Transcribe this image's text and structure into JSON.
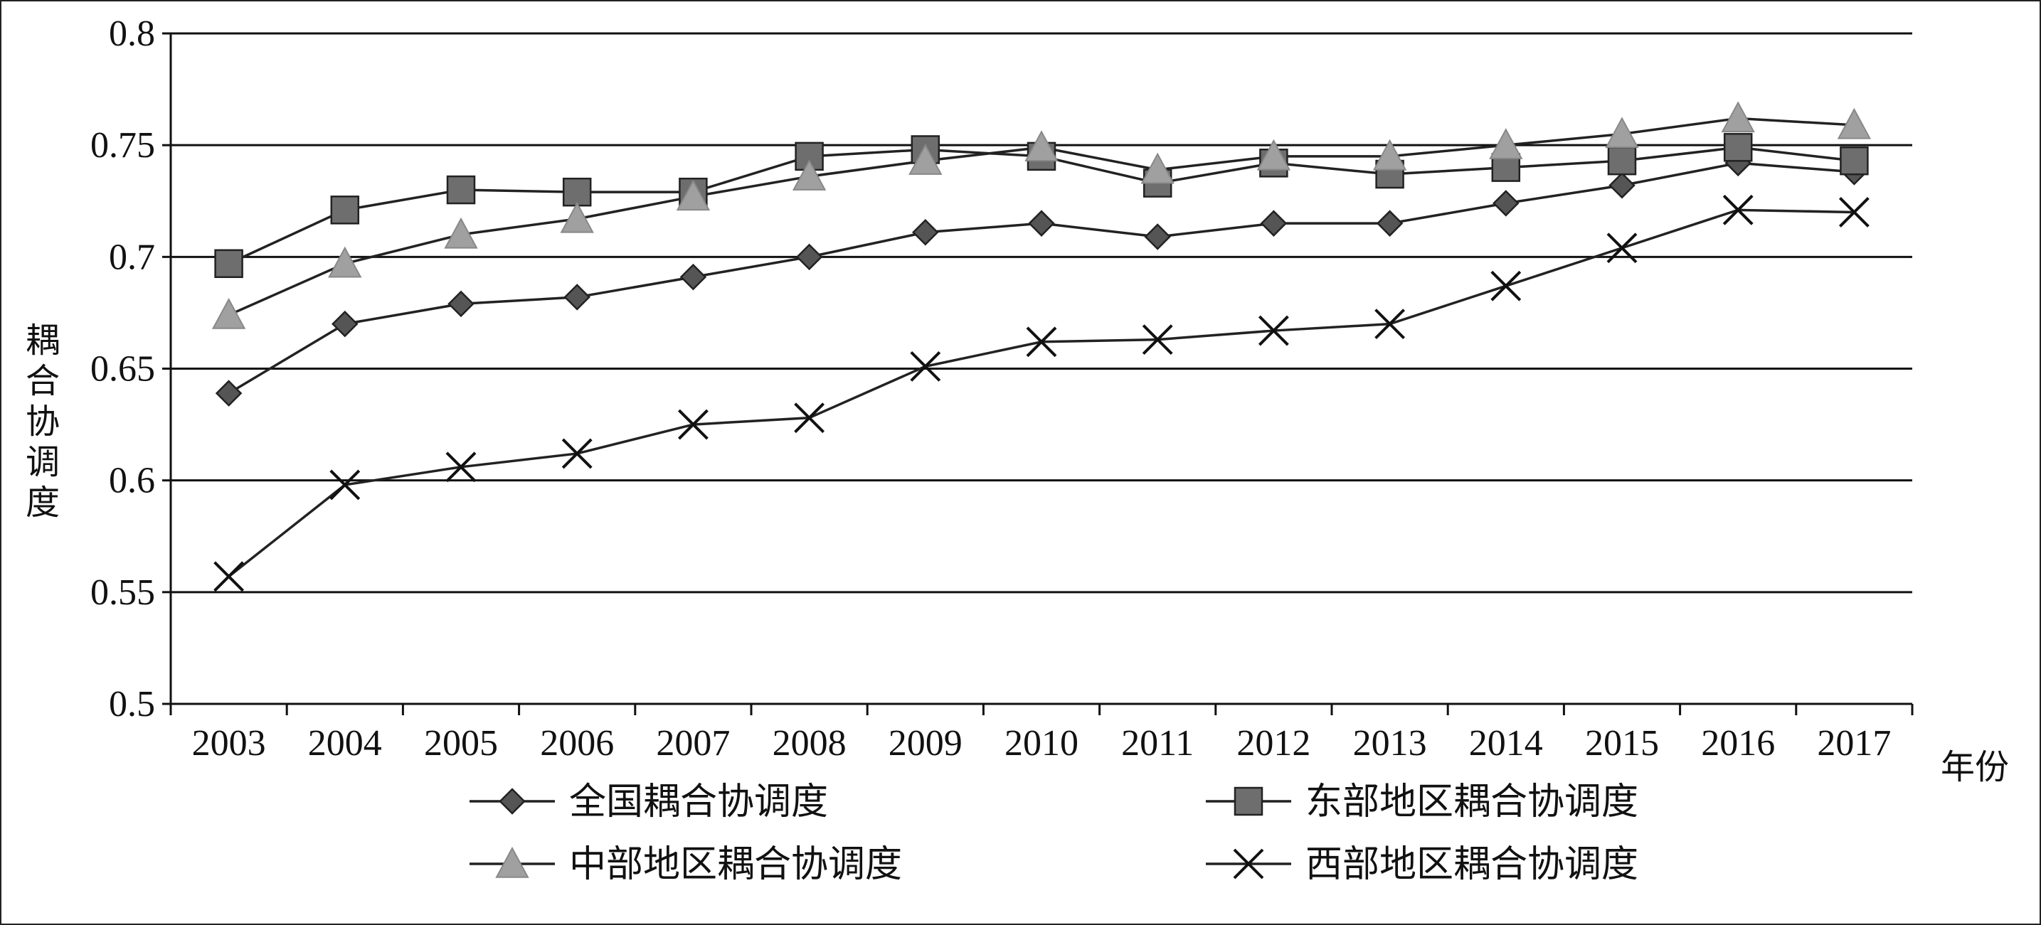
{
  "chart_data": {
    "type": "line",
    "title": "",
    "xlabel": "年份",
    "ylabel": "耦合协调度",
    "ylim": [
      0.5,
      0.8
    ],
    "yticks": [
      "0.5",
      "0.55",
      "0.6",
      "0.65",
      "0.7",
      "0.75",
      "0.8"
    ],
    "grid": "horizontal",
    "legend_position": "bottom",
    "categories": [
      "2003",
      "2004",
      "2005",
      "2006",
      "2007",
      "2008",
      "2009",
      "2010",
      "2011",
      "2012",
      "2013",
      "2014",
      "2015",
      "2016",
      "2017"
    ],
    "series": [
      {
        "name": "全国耦合协调度",
        "marker": "diamond",
        "color": "#555555",
        "values": [
          0.639,
          0.67,
          0.679,
          0.682,
          0.691,
          0.7,
          0.711,
          0.715,
          0.709,
          0.715,
          0.715,
          0.724,
          0.732,
          0.742,
          0.738
        ]
      },
      {
        "name": "东部地区耦合协调度",
        "marker": "square",
        "color": "#6e6e6e",
        "values": [
          0.697,
          0.721,
          0.73,
          0.729,
          0.729,
          0.745,
          0.748,
          0.745,
          0.733,
          0.742,
          0.737,
          0.74,
          0.743,
          0.749,
          0.743
        ]
      },
      {
        "name": "中部地区耦合协调度",
        "marker": "triangle",
        "color": "#a0a0a0",
        "values": [
          0.674,
          0.697,
          0.71,
          0.717,
          0.727,
          0.736,
          0.743,
          0.749,
          0.739,
          0.745,
          0.745,
          0.75,
          0.755,
          0.762,
          0.759
        ]
      },
      {
        "name": "西部地区耦合协调度",
        "marker": "x",
        "color": "#111111",
        "values": [
          0.557,
          0.598,
          0.606,
          0.612,
          0.625,
          0.628,
          0.651,
          0.662,
          0.663,
          0.667,
          0.67,
          0.687,
          0.704,
          0.721,
          0.72
        ]
      }
    ]
  }
}
